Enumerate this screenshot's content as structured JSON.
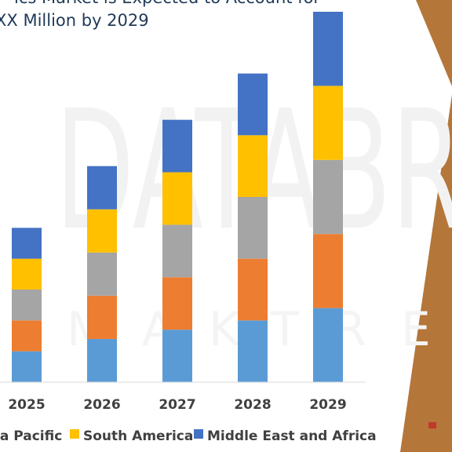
{
  "title_lines": [
    "ics Market is Expected to Account for",
    "XX Million by 2029"
  ],
  "watermark": {
    "main": "DATABR",
    "sub": "MAKTRE"
  },
  "chart_data": {
    "type": "bar",
    "stacked": true,
    "categories": [
      "2025",
      "2026",
      "2027",
      "2028",
      "2029"
    ],
    "ylim": [
      0,
      12
    ],
    "grid": false,
    "legend_position": "bottom",
    "series": [
      {
        "name": "",
        "color": "#5b9bd5",
        "values": [
          1.0,
          1.4,
          1.7,
          2.0,
          2.4
        ]
      },
      {
        "name": "",
        "color": "#ed7d31",
        "values": [
          1.0,
          1.4,
          1.7,
          2.0,
          2.4
        ]
      },
      {
        "name": "",
        "color": "#a5a5a5",
        "values": [
          1.0,
          1.4,
          1.7,
          2.0,
          2.4
        ]
      },
      {
        "name": "South America",
        "color": "#ffc000",
        "values": [
          1.0,
          1.4,
          1.7,
          2.0,
          2.4
        ]
      },
      {
        "name": "Middle East and Africa",
        "color": "#4472c4",
        "values": [
          1.0,
          1.4,
          1.7,
          2.0,
          2.4
        ]
      }
    ]
  },
  "legend": {
    "entries": [
      {
        "label": "ia Pacific",
        "color": "#ed7d31"
      },
      {
        "label": "South America",
        "color": "#ffc000"
      },
      {
        "label": "Middle East and Africa",
        "color": "#4472c4"
      }
    ]
  },
  "colors": {
    "accent_brown": "#b5763a",
    "axis": "#d9d9d9",
    "marker": "#c0392b"
  }
}
